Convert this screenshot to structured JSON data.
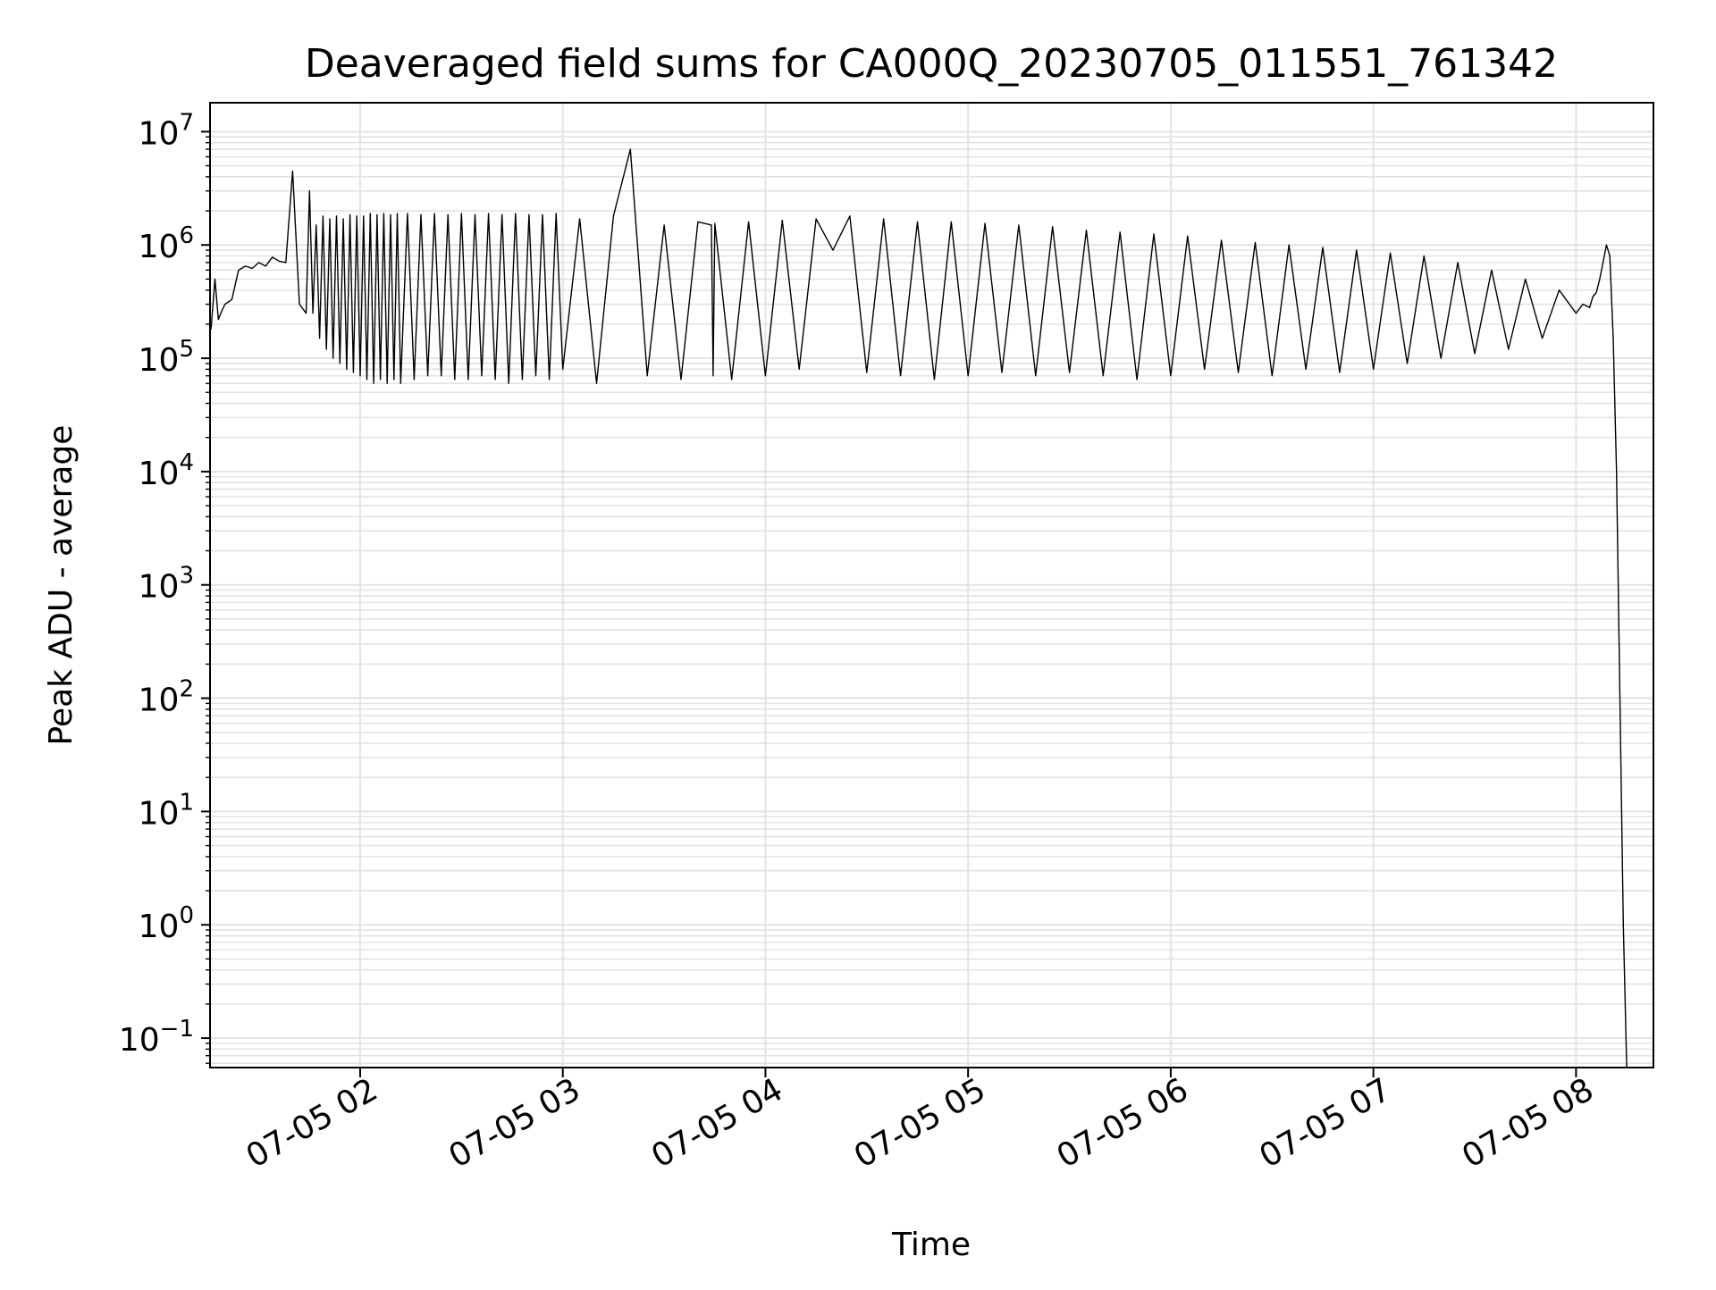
{
  "chart_data": {
    "type": "line",
    "title": "Deaveraged field sums for CA000Q_20230705_011551_761342",
    "xlabel": "Time",
    "ylabel": "Peak ADU - average",
    "yscale": "log",
    "ylim": [
      0.055,
      18000000
    ],
    "xlim": [
      "07-05 01:15:33",
      "07-05 08:22:55"
    ],
    "x_ticks": [
      "07-05 02",
      "07-05 03",
      "07-05 04",
      "07-05 05",
      "07-05 06",
      "07-05 07",
      "07-05 08"
    ],
    "y_ticks": [
      {
        "base": "10",
        "exp": "7"
      },
      {
        "base": "10",
        "exp": "6"
      },
      {
        "base": "10",
        "exp": "5"
      },
      {
        "base": "10",
        "exp": "4"
      },
      {
        "base": "10",
        "exp": "3"
      },
      {
        "base": "10",
        "exp": "2"
      },
      {
        "base": "10",
        "exp": "1"
      },
      {
        "base": "10",
        "exp": "0"
      },
      {
        "base": "10",
        "exp": "−1"
      }
    ],
    "grid": true,
    "line_color": "#000000",
    "grid_color": "#e3e3e3",
    "series": [
      {
        "x": [
          "07-05 01:15:51",
          "07-05 01:17:00",
          "07-05 01:18:00",
          "07-05 01:19:00",
          "07-05 01:20:00",
          "07-05 01:22:00",
          "07-05 01:24:00",
          "07-05 01:26:00",
          "07-05 01:28:00",
          "07-05 01:30:00",
          "07-05 01:32:00",
          "07-05 01:34:00",
          "07-05 01:36:00",
          "07-05 01:38:00",
          "07-05 01:40:00",
          "07-05 01:42:00",
          "07-05 01:44:00",
          "07-05 01:45:00",
          "07-05 01:46:00",
          "07-05 01:47:00",
          "07-05 01:48:00",
          "07-05 01:49:00",
          "07-05 01:50:00",
          "07-05 01:51:00",
          "07-05 01:52:00",
          "07-05 01:53:00",
          "07-05 01:54:00",
          "07-05 01:55:00",
          "07-05 01:56:00",
          "07-05 01:57:00",
          "07-05 01:58:00",
          "07-05 01:59:00",
          "07-05 02:00:00",
          "07-05 02:01:00",
          "07-05 02:02:00",
          "07-05 02:03:00",
          "07-05 02:04:00",
          "07-05 02:05:00",
          "07-05 02:06:00",
          "07-05 02:07:00",
          "07-05 02:08:00",
          "07-05 02:09:00",
          "07-05 02:10:00",
          "07-05 02:11:00",
          "07-05 02:12:00",
          "07-05 02:14:00",
          "07-05 02:16:00",
          "07-05 02:18:00",
          "07-05 02:20:00",
          "07-05 02:22:00",
          "07-05 02:24:00",
          "07-05 02:26:00",
          "07-05 02:28:00",
          "07-05 02:30:00",
          "07-05 02:32:00",
          "07-05 02:34:00",
          "07-05 02:36:00",
          "07-05 02:38:00",
          "07-05 02:40:00",
          "07-05 02:42:00",
          "07-05 02:44:00",
          "07-05 02:46:00",
          "07-05 02:48:00",
          "07-05 02:50:00",
          "07-05 02:52:00",
          "07-05 02:54:00",
          "07-05 02:56:00",
          "07-05 02:58:00",
          "07-05 03:00:00",
          "07-05 03:05:00",
          "07-05 03:10:00",
          "07-05 03:15:00",
          "07-05 03:20:00",
          "07-05 03:25:00",
          "07-05 03:30:00",
          "07-05 03:35:00",
          "07-05 03:40:00",
          "07-05 03:44:00",
          "07-05 03:44:30",
          "07-05 03:45:00",
          "07-05 03:50:00",
          "07-05 03:55:00",
          "07-05 04:00:00",
          "07-05 04:05:00",
          "07-05 04:10:00",
          "07-05 04:15:00",
          "07-05 04:20:00",
          "07-05 04:25:00",
          "07-05 04:30:00",
          "07-05 04:35:00",
          "07-05 04:40:00",
          "07-05 04:45:00",
          "07-05 04:50:00",
          "07-05 04:55:00",
          "07-05 05:00:00",
          "07-05 05:05:00",
          "07-05 05:10:00",
          "07-05 05:15:00",
          "07-05 05:20:00",
          "07-05 05:25:00",
          "07-05 05:30:00",
          "07-05 05:35:00",
          "07-05 05:40:00",
          "07-05 05:45:00",
          "07-05 05:50:00",
          "07-05 05:55:00",
          "07-05 06:00:00",
          "07-05 06:05:00",
          "07-05 06:10:00",
          "07-05 06:15:00",
          "07-05 06:20:00",
          "07-05 06:25:00",
          "07-05 06:30:00",
          "07-05 06:35:00",
          "07-05 06:40:00",
          "07-05 06:45:00",
          "07-05 06:50:00",
          "07-05 06:55:00",
          "07-05 07:00:00",
          "07-05 07:05:00",
          "07-05 07:10:00",
          "07-05 07:15:00",
          "07-05 07:20:00",
          "07-05 07:25:00",
          "07-05 07:30:00",
          "07-05 07:35:00",
          "07-05 07:40:00",
          "07-05 07:45:00",
          "07-05 07:50:00",
          "07-05 07:55:00",
          "07-05 08:00:00",
          "07-05 08:02:00",
          "07-05 08:04:00",
          "07-05 08:05:00",
          "07-05 08:06:00",
          "07-05 08:07:00",
          "07-05 08:08:00",
          "07-05 08:09:00",
          "07-05 08:10:00",
          "07-05 08:11:00",
          "07-05 08:12:00",
          "07-05 08:13:00",
          "07-05 08:14:00",
          "07-05 08:15:00"
        ],
        "y": [
          180000,
          500000,
          220000,
          260000,
          300000,
          330000,
          600000,
          650000,
          620000,
          700000,
          650000,
          780000,
          720000,
          700000,
          4500000,
          300000,
          250000,
          3000000,
          250000,
          1500000,
          150000,
          1800000,
          120000,
          1700000,
          100000,
          1800000,
          90000,
          1700000,
          80000,
          1850000,
          75000,
          1800000,
          70000,
          1800000,
          65000,
          1900000,
          60000,
          1850000,
          65000,
          1900000,
          60000,
          1850000,
          65000,
          1900000,
          60000,
          1900000,
          65000,
          1850000,
          70000,
          1900000,
          70000,
          1850000,
          65000,
          1900000,
          65000,
          1850000,
          70000,
          1900000,
          65000,
          1850000,
          60000,
          1900000,
          65000,
          1850000,
          70000,
          1850000,
          65000,
          1900000,
          80000,
          1700000,
          60000,
          1800000,
          7000000,
          70000,
          1500000,
          65000,
          1600000,
          1500000,
          70000,
          1550000,
          65000,
          1600000,
          70000,
          1650000,
          80000,
          1700000,
          900000,
          1800000,
          75000,
          1700000,
          70000,
          1600000,
          65000,
          1600000,
          70000,
          1550000,
          75000,
          1500000,
          70000,
          1450000,
          75000,
          1350000,
          70000,
          1300000,
          65000,
          1250000,
          70000,
          1200000,
          80000,
          1100000,
          75000,
          1050000,
          70000,
          1000000,
          80000,
          950000,
          75000,
          900000,
          80000,
          850000,
          90000,
          800000,
          100000,
          700000,
          110000,
          600000,
          120000,
          500000,
          150000,
          400000,
          250000,
          300000,
          280000,
          350000,
          380000,
          500000,
          700000,
          1000000,
          800000,
          150000,
          10000,
          100,
          1,
          0.055
        ],
        "name": ""
      }
    ]
  }
}
